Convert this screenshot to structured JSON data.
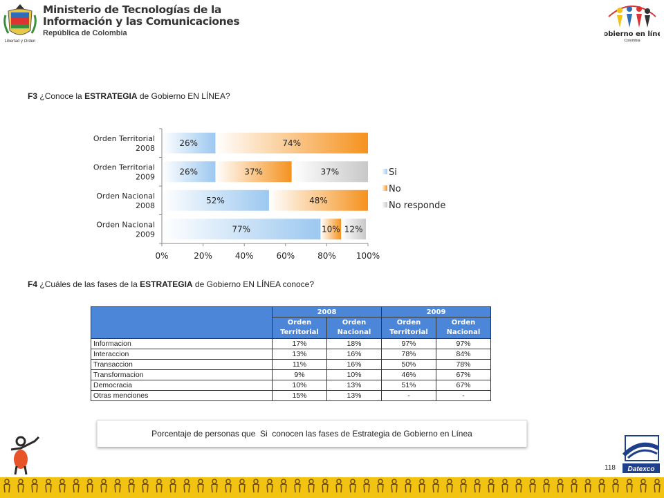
{
  "header": {
    "ministry_line1": "Ministerio de Tecnologías de la",
    "ministry_line2": "Información y las Comunicaciones",
    "ministry_line3": "República de Colombia",
    "crest_motto": "Libertad y Orden",
    "gel_logo_text": "Gobierno en línea",
    "gel_logo_sub": "Colombia"
  },
  "question_f3": {
    "code": "F3",
    "pre": "¿Conoce la",
    "bold": "ESTRATEGIA",
    "post": "de Gobierno EN LÍNEA?"
  },
  "question_f4": {
    "code": "F4",
    "pre": "¿Cuáles de las fases de la",
    "bold": "ESTRATEGIA",
    "post": "de Gobierno EN LÍNEA conoce?"
  },
  "chart_data": {
    "type": "bar",
    "orientation": "horizontal-stacked-100",
    "categories": [
      [
        "Orden Territorial",
        "2008"
      ],
      [
        "Orden Territorial",
        "2009"
      ],
      [
        "Orden Nacional",
        "2008"
      ],
      [
        "Orden Nacional",
        "2009"
      ]
    ],
    "series": [
      {
        "name": "Si",
        "values": [
          26,
          26,
          52,
          77
        ],
        "color": "#9cc8f0"
      },
      {
        "name": "No",
        "values": [
          74,
          37,
          48,
          10
        ],
        "color": "#f5921e"
      },
      {
        "name": "No responde",
        "values": [
          0,
          37,
          0,
          12
        ],
        "color": "#c8c8c8"
      }
    ],
    "data_labels": [
      [
        "26%",
        "74%",
        ""
      ],
      [
        "26%",
        "37%",
        "37%"
      ],
      [
        "52%",
        "48%",
        ""
      ],
      [
        "77%",
        "10%",
        "12%"
      ]
    ],
    "xlim": [
      0,
      100
    ],
    "xticks": [
      "0%",
      "20%",
      "40%",
      "60%",
      "80%",
      "100%"
    ],
    "legend_position": "right",
    "grid": false
  },
  "table": {
    "years": [
      "2008",
      "2009"
    ],
    "subheaders": [
      [
        "Orden",
        "Territorial"
      ],
      [
        "Orden",
        "Nacional"
      ],
      [
        "Orden",
        "Territorial"
      ],
      [
        "Orden",
        "Nacional"
      ]
    ],
    "rows": [
      {
        "label": "Informacion",
        "values": [
          "17%",
          "18%",
          "97%",
          "97%"
        ]
      },
      {
        "label": "Interaccion",
        "values": [
          "13%",
          "16%",
          "78%",
          "84%"
        ]
      },
      {
        "label": "Transaccion",
        "values": [
          "11%",
          "16%",
          "50%",
          "78%"
        ]
      },
      {
        "label": "Transformacion",
        "values": [
          "9%",
          "10%",
          "46%",
          "67%"
        ]
      },
      {
        "label": "Democracia",
        "values": [
          "10%",
          "13%",
          "51%",
          "67%"
        ]
      },
      {
        "label": "Otras menciones",
        "values": [
          "15%",
          "13%",
          "-",
          "-"
        ]
      }
    ]
  },
  "caption": "Porcentaje de personas que  Si  conocen las fases de Estrategia de Gobierno en Línea",
  "page_number": "118",
  "footer_logo_text": "Datexco"
}
